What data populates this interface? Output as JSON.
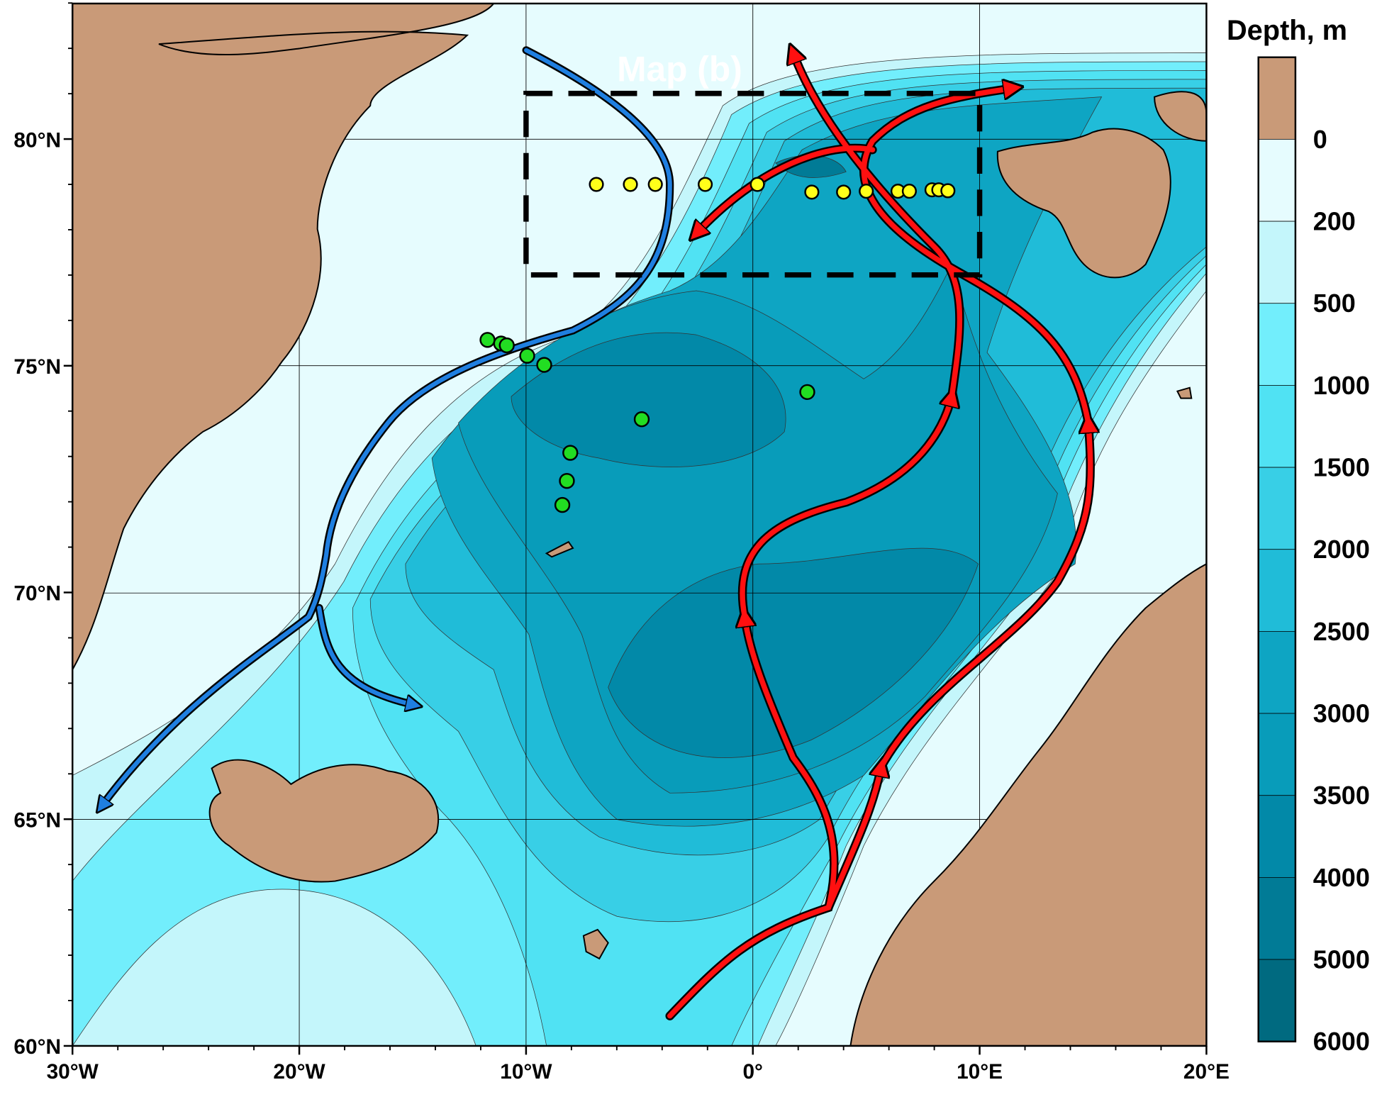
{
  "map": {
    "lon_range": [
      -30,
      20
    ],
    "lat_range": [
      60,
      83
    ],
    "x_ticks": [
      {
        "lon": -30,
        "label": "30°W"
      },
      {
        "lon": -20,
        "label": "20°W"
      },
      {
        "lon": -10,
        "label": "10°W"
      },
      {
        "lon": 0,
        "label": "0°"
      },
      {
        "lon": 10,
        "label": "10°E"
      },
      {
        "lon": 20,
        "label": "20°E"
      }
    ],
    "y_ticks": [
      {
        "lat": 60,
        "label": "60°N"
      },
      {
        "lat": 65,
        "label": "65°N"
      },
      {
        "lat": 70,
        "label": "70°N"
      },
      {
        "lat": 75,
        "label": "75°N"
      },
      {
        "lat": 80,
        "label": "80°N"
      }
    ],
    "grid": true,
    "inset_box": {
      "label": "Map (b)",
      "lon": [
        -10,
        10
      ],
      "lat": [
        77,
        81
      ],
      "style": "dashed"
    },
    "stations_yellow": [
      [
        -6.9,
        79.0
      ],
      [
        -5.4,
        79.0
      ],
      [
        -4.3,
        79.0
      ],
      [
        -2.1,
        79.0
      ],
      [
        0.2,
        79.0
      ],
      [
        2.6,
        78.83
      ],
      [
        4.0,
        78.83
      ],
      [
        5.0,
        78.85
      ],
      [
        6.4,
        78.85
      ],
      [
        6.9,
        78.85
      ],
      [
        7.9,
        78.88
      ],
      [
        8.2,
        78.88
      ],
      [
        8.6,
        78.86
      ]
    ],
    "stations_green": [
      [
        -11.7,
        75.57
      ],
      [
        -11.1,
        75.49
      ],
      [
        -10.85,
        75.45
      ],
      [
        -9.95,
        75.22
      ],
      [
        -9.2,
        75.02
      ],
      [
        -4.9,
        73.82
      ],
      [
        2.4,
        74.42
      ],
      [
        -8.05,
        73.08
      ],
      [
        -8.2,
        72.46
      ],
      [
        -8.4,
        71.93
      ]
    ],
    "colors": {
      "land": "#c99a78",
      "cold_current": "#1f7fe0",
      "warm_current": "#ff1010",
      "yellow_station": "#ffff1a",
      "green_station": "#22dd22"
    }
  },
  "colorbar": {
    "title": "Depth, m",
    "levels": [
      "0",
      "200",
      "500",
      "1000",
      "1500",
      "2000",
      "2500",
      "3000",
      "3500",
      "4000",
      "5000",
      "6000"
    ],
    "colors": [
      "#c99a78",
      "#e6fcfe",
      "#c4f6fb",
      "#72eefc",
      "#50e2f3",
      "#38cfe6",
      "#20bcd8",
      "#0ea5c3",
      "#089cba",
      "#0289a8",
      "#017b96",
      "#006a80"
    ]
  }
}
